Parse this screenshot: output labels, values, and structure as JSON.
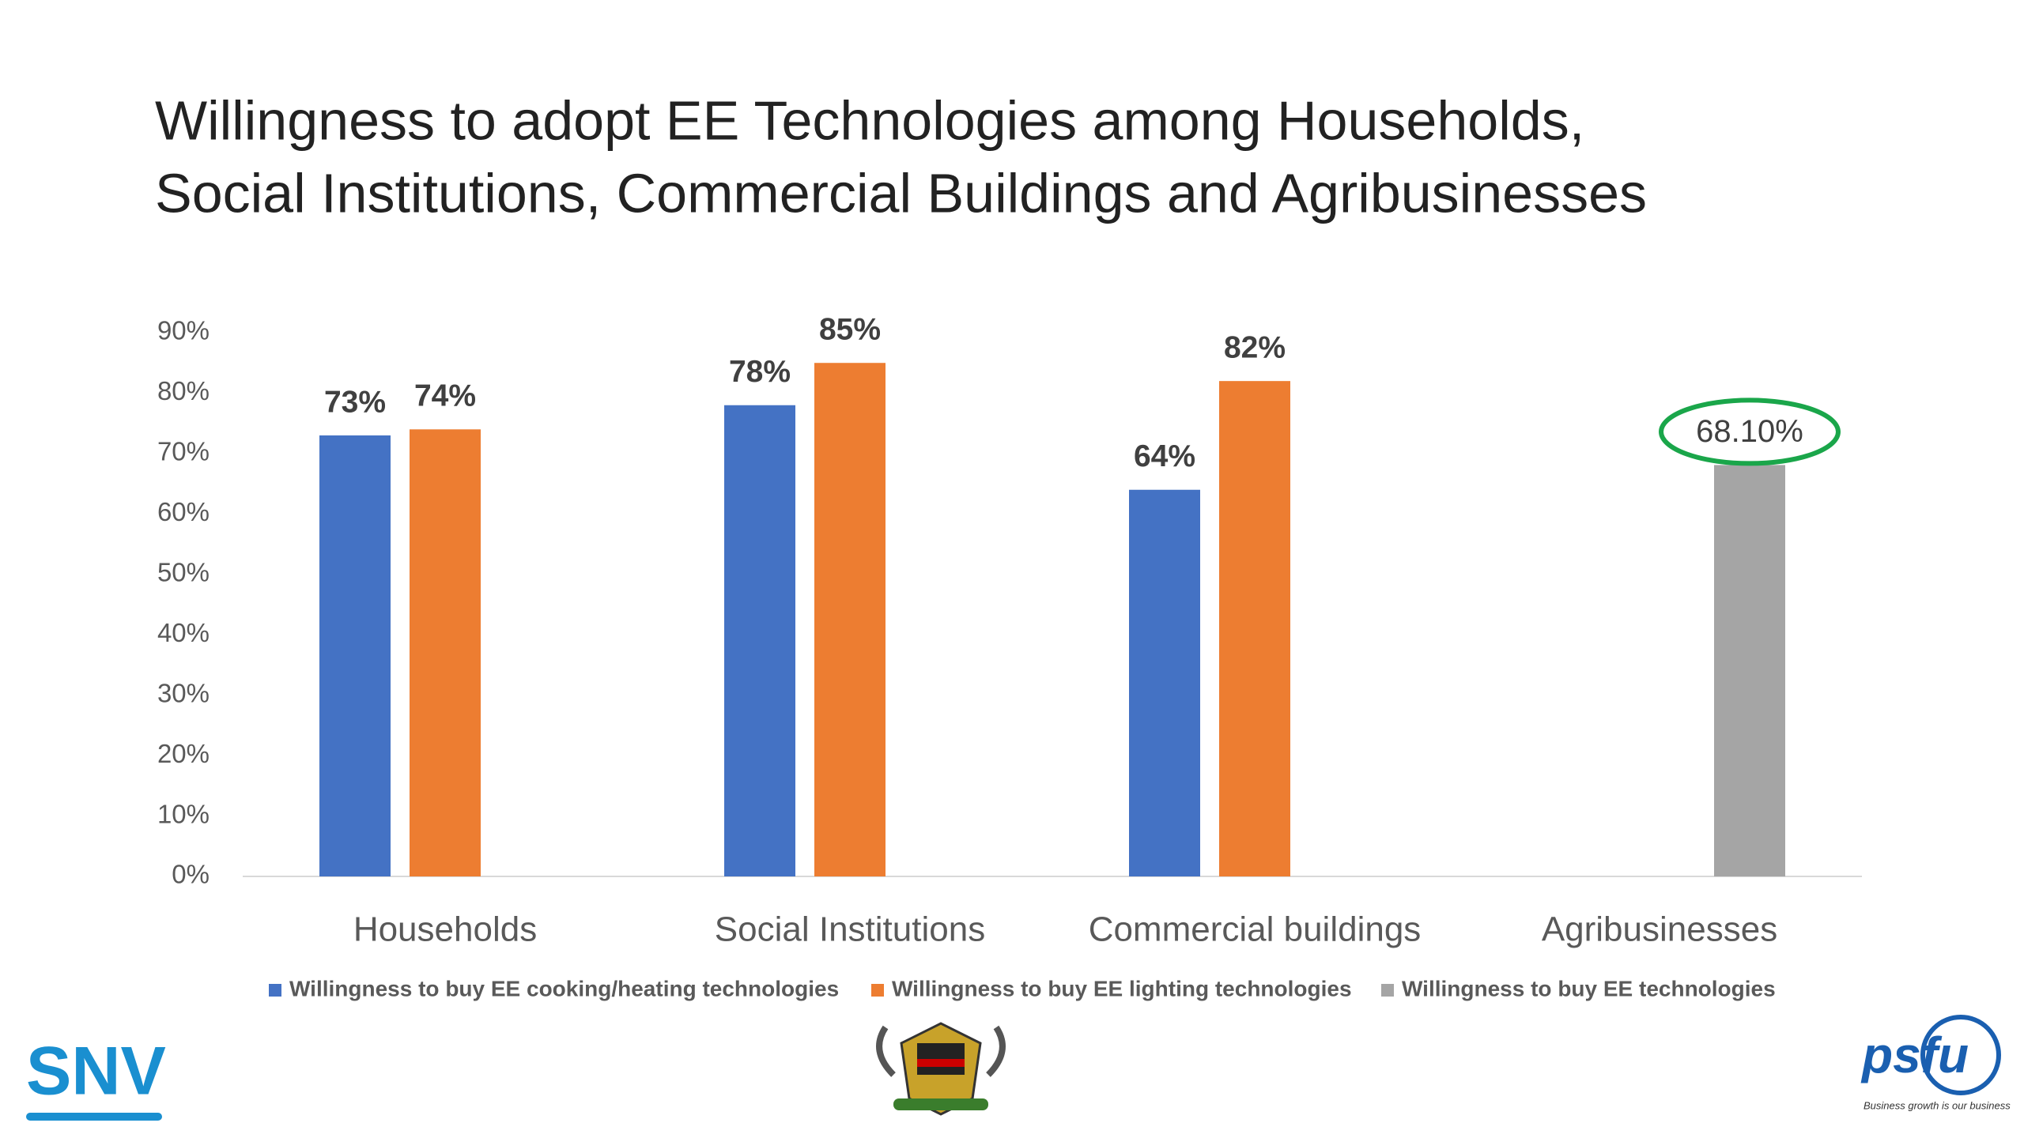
{
  "chart_data": {
    "type": "bar",
    "title": "Willingness to adopt EE Technologies among Households,",
    "subtitle": "Social Institutions, Commercial Buildings and Agribusinesses",
    "categories": [
      "Households",
      "Social Institutions",
      "Commercial buildings",
      "Agribusinesses"
    ],
    "series": [
      {
        "name": "Willingness to buy EE cooking/heating technologies",
        "color": "#4472c4",
        "values": [
          73,
          78,
          64,
          null
        ],
        "value_labels": [
          "73%",
          "78%",
          "64%",
          null
        ]
      },
      {
        "name": "Willingness to buy EE lighting technologies",
        "color": "#ed7d31",
        "values": [
          74,
          85,
          82,
          null
        ],
        "value_labels": [
          "74%",
          "85%",
          "82%",
          null
        ]
      },
      {
        "name": "Willingness to buy EE technologies",
        "color": "#a5a5a5",
        "values": [
          null,
          null,
          null,
          68.1
        ],
        "value_labels": [
          null,
          null,
          null,
          "68.10%"
        ]
      }
    ],
    "ylim": [
      0,
      90
    ],
    "yticks": [
      {
        "value": 0,
        "label": "0%"
      },
      {
        "value": 10,
        "label": "10%"
      },
      {
        "value": 20,
        "label": "20%"
      },
      {
        "value": 30,
        "label": "30%"
      },
      {
        "value": 40,
        "label": "40%"
      },
      {
        "value": 50,
        "label": "50%"
      },
      {
        "value": 60,
        "label": "60%"
      },
      {
        "value": 70,
        "label": "70%"
      },
      {
        "value": 80,
        "label": "80%"
      },
      {
        "value": 90,
        "label": "90%"
      }
    ],
    "grid": false,
    "legend": "bottom"
  },
  "logos": {
    "left": "SNV",
    "right": "psfu",
    "right_tagline": "Business growth is our business"
  }
}
